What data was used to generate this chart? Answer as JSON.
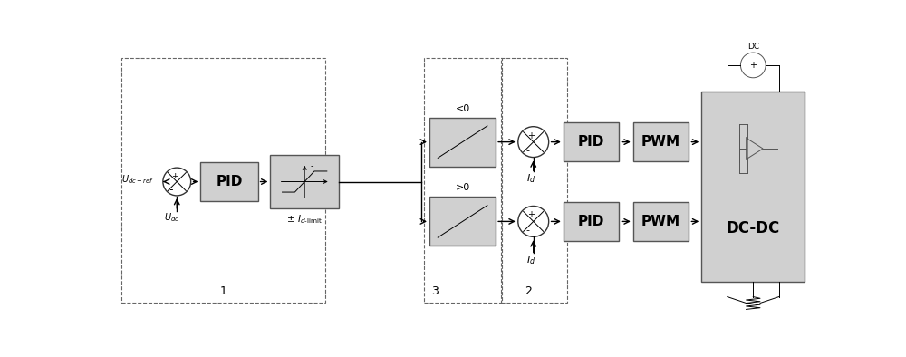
{
  "bg_color": "#ffffff",
  "box_face": "#d0d0d0",
  "box_edge": "#555555",
  "line_color": "#000000",
  "text_color": "#000000",
  "figsize": [
    10.0,
    3.94
  ],
  "dpi": 100,
  "xlim": [
    0,
    10
  ],
  "ylim": [
    0,
    3.94
  ]
}
